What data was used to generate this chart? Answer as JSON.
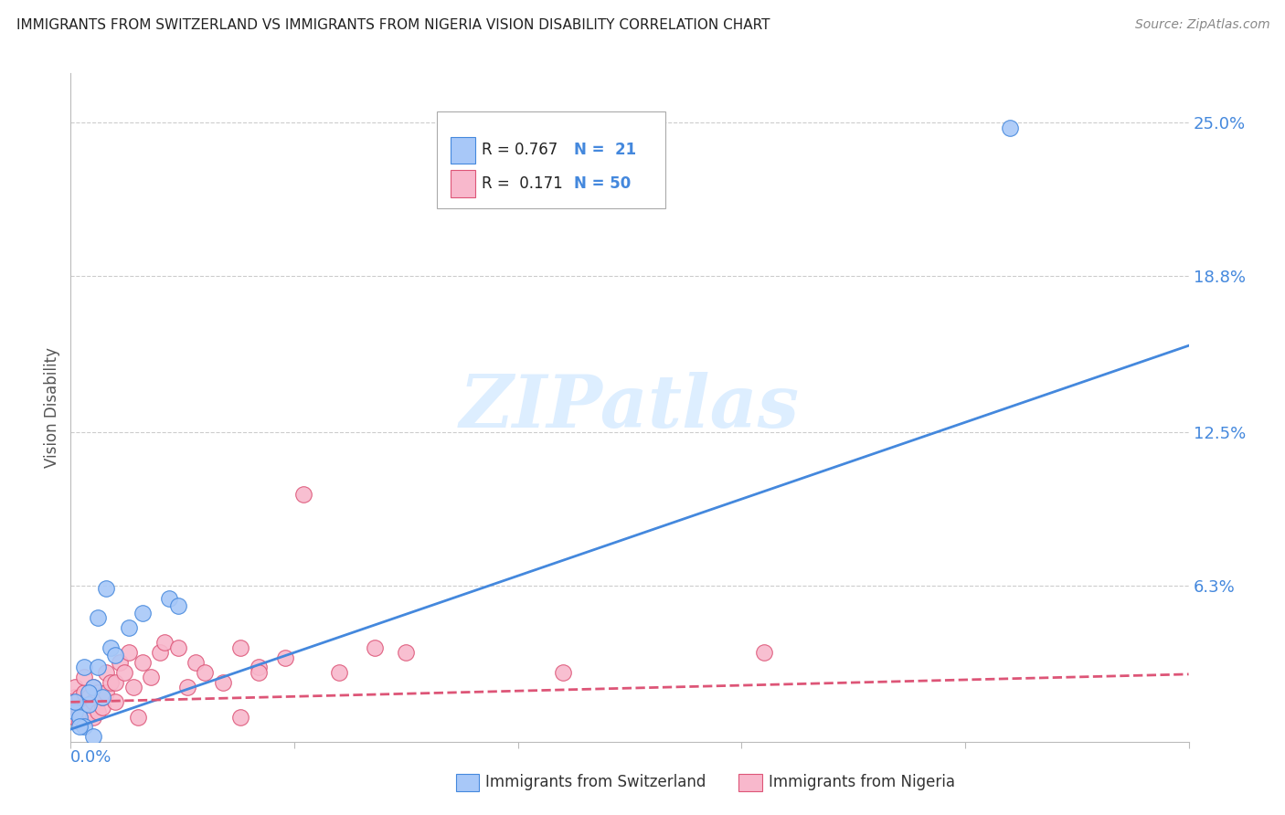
{
  "title": "IMMIGRANTS FROM SWITZERLAND VS IMMIGRANTS FROM NIGERIA VISION DISABILITY CORRELATION CHART",
  "source": "Source: ZipAtlas.com",
  "ylabel": "Vision Disability",
  "ytick_labels": [
    "25.0%",
    "18.8%",
    "12.5%",
    "6.3%"
  ],
  "ytick_values": [
    0.25,
    0.188,
    0.125,
    0.063
  ],
  "xlim": [
    0.0,
    0.25
  ],
  "ylim": [
    0.0,
    0.27
  ],
  "switzerland_color": "#a8c8f8",
  "nigeria_color": "#f8b8cc",
  "trend_switzerland_color": "#4488dd",
  "trend_nigeria_color": "#dd5577",
  "watermark_color": "#ddeeff",
  "background_color": "#ffffff",
  "grid_color": "#cccccc",
  "switzerland_points_x": [
    0.001,
    0.002,
    0.003,
    0.003,
    0.004,
    0.005,
    0.006,
    0.006,
    0.007,
    0.008,
    0.009,
    0.01,
    0.013,
    0.016,
    0.022,
    0.024,
    0.002,
    0.004,
    0.005,
    0.21,
    0.001
  ],
  "switzerland_points_y": [
    0.012,
    0.01,
    0.006,
    0.03,
    0.015,
    0.022,
    0.03,
    0.05,
    0.018,
    0.062,
    0.038,
    0.035,
    0.046,
    0.052,
    0.058,
    0.055,
    0.006,
    0.02,
    0.002,
    0.248,
    0.016
  ],
  "nigeria_points_x": [
    0.001,
    0.001,
    0.001,
    0.001,
    0.002,
    0.002,
    0.002,
    0.003,
    0.003,
    0.003,
    0.003,
    0.004,
    0.004,
    0.005,
    0.005,
    0.005,
    0.006,
    0.006,
    0.007,
    0.007,
    0.008,
    0.008,
    0.009,
    0.01,
    0.01,
    0.011,
    0.012,
    0.013,
    0.014,
    0.015,
    0.016,
    0.018,
    0.02,
    0.021,
    0.024,
    0.026,
    0.028,
    0.03,
    0.034,
    0.038,
    0.042,
    0.048,
    0.052,
    0.06,
    0.068,
    0.075,
    0.038,
    0.042,
    0.11,
    0.155
  ],
  "nigeria_points_y": [
    0.01,
    0.014,
    0.018,
    0.022,
    0.008,
    0.012,
    0.018,
    0.01,
    0.014,
    0.02,
    0.026,
    0.012,
    0.018,
    0.01,
    0.016,
    0.022,
    0.012,
    0.02,
    0.014,
    0.018,
    0.02,
    0.028,
    0.024,
    0.016,
    0.024,
    0.032,
    0.028,
    0.036,
    0.022,
    0.01,
    0.032,
    0.026,
    0.036,
    0.04,
    0.038,
    0.022,
    0.032,
    0.028,
    0.024,
    0.038,
    0.03,
    0.034,
    0.1,
    0.028,
    0.038,
    0.036,
    0.01,
    0.028,
    0.028,
    0.036
  ],
  "trend_sw_intercept": 0.005,
  "trend_sw_slope": 0.62,
  "trend_ng_intercept": 0.016,
  "trend_ng_slope": 0.045,
  "watermark": "ZIPatlas"
}
